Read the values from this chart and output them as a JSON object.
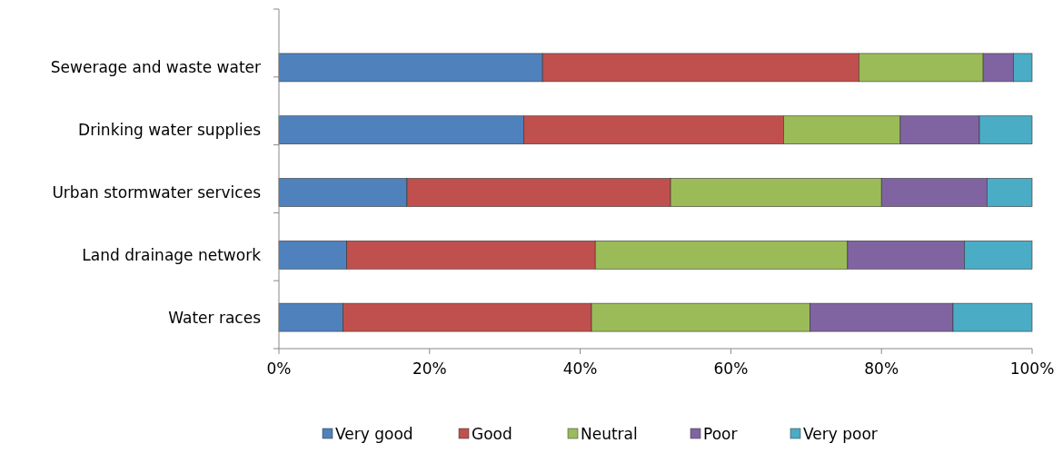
{
  "chart_data": {
    "type": "bar",
    "orientation": "horizontal",
    "stacked": true,
    "categories": [
      "Sewerage and waste water",
      "Drinking water supplies",
      "Urban stormwater services",
      "Land drainage network",
      "Water races"
    ],
    "series": [
      {
        "name": "Very good",
        "color": "#4f81bd",
        "values": [
          35,
          32.5,
          17,
          9,
          8.5
        ]
      },
      {
        "name": "Good",
        "color": "#c0504d",
        "values": [
          42,
          34.5,
          35,
          33,
          33
        ]
      },
      {
        "name": "Neutral",
        "color": "#9bbb59",
        "values": [
          16.5,
          15.5,
          28,
          33.5,
          29
        ]
      },
      {
        "name": "Poor",
        "color": "#8064a2",
        "values": [
          4,
          10.5,
          14,
          15.5,
          19
        ]
      },
      {
        "name": "Very poor",
        "color": "#4bacc6",
        "values": [
          2.5,
          7,
          6,
          9,
          10.5
        ]
      }
    ],
    "xlim": [
      0,
      100
    ],
    "xticks": [
      {
        "value": 0,
        "label": "0%"
      },
      {
        "value": 20,
        "label": "20%"
      },
      {
        "value": 40,
        "label": "40%"
      },
      {
        "value": 60,
        "label": "60%"
      },
      {
        "value": 80,
        "label": "80%"
      },
      {
        "value": 100,
        "label": "100%"
      }
    ],
    "grid": false,
    "legend": "bottom"
  }
}
